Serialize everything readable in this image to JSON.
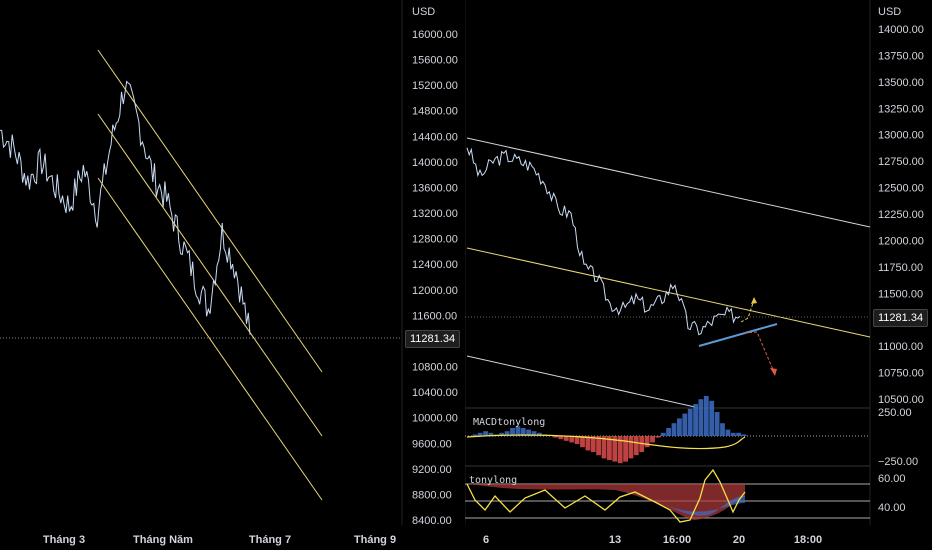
{
  "left_chart": {
    "currency": "USD",
    "y_ticks": [
      "16000.00",
      "15600.00",
      "15200.00",
      "14800.00",
      "14400.00",
      "14000.00",
      "13600.00",
      "13200.00",
      "12800.00",
      "12400.00",
      "12000.00",
      "11600.00",
      "10800.00",
      "10400.00",
      "10000.00",
      "9600.00",
      "9200.00",
      "8800.00",
      "8400.00"
    ],
    "x_ticks": [
      "Tháng 3",
      "Tháng Năm",
      "Tháng 7",
      "Tháng 9"
    ],
    "price_tag": "11281.34"
  },
  "right_chart": {
    "currency": "USD",
    "y_ticks": [
      "14000.00",
      "13750.00",
      "13500.00",
      "13250.00",
      "13000.00",
      "12750.00",
      "12500.00",
      "12250.00",
      "12000.00",
      "11750.00",
      "11500.00",
      "11000.00",
      "10750.00",
      "10500.00"
    ],
    "x_ticks": [
      "6",
      "13",
      "16:00",
      "20",
      "18:00"
    ],
    "price_tag": "11281.34",
    "macd": {
      "label": "MACDtonylong",
      "ticks": [
        "250.00",
        "−250.00"
      ]
    },
    "osc": {
      "label": "tonylong",
      "ticks": [
        "60.00",
        "40.00"
      ]
    }
  },
  "colors": {
    "price_line": "#c9dcf5",
    "channel": "#e8d678",
    "trendline_white": "#d1d4dc",
    "support": "#5b9bd5",
    "arrow_up": "#e8c84a",
    "arrow_down": "#e05a4a",
    "macd_pos": "#3d6fc4",
    "macd_neg": "#e04d4d",
    "osc_fill_red": "#b33a3a",
    "osc_fill_blue": "#3d6fc4",
    "osc_line": "#f5e04a"
  },
  "chart_data": [
    {
      "type": "line",
      "x_labels": [
        "Tháng 3",
        "Tháng Năm",
        "Tháng 7",
        "Tháng 9"
      ],
      "ylim": [
        8400,
        16000
      ],
      "series": [
        {
          "values": [
            14500,
            14200,
            13700,
            14000,
            13600,
            13300,
            13900,
            13200,
            14300,
            15200,
            14600,
            13800,
            13400,
            12800,
            12200,
            11700,
            12900,
            12300,
            11300
          ]
        }
      ]
    },
    {
      "type": "line",
      "x_labels": [
        "6",
        "13",
        "16:00",
        "20",
        "18:00"
      ],
      "ylim": [
        10500,
        14000
      ],
      "series": [
        {
          "values": [
            12900,
            12600,
            12750,
            12800,
            12750,
            12700,
            12550,
            12300,
            12250,
            11750,
            11650,
            11400,
            11350,
            11450,
            11350,
            11450,
            11600,
            11200,
            11150,
            11250,
            11300,
            11281
          ]
        }
      ]
    }
  ]
}
